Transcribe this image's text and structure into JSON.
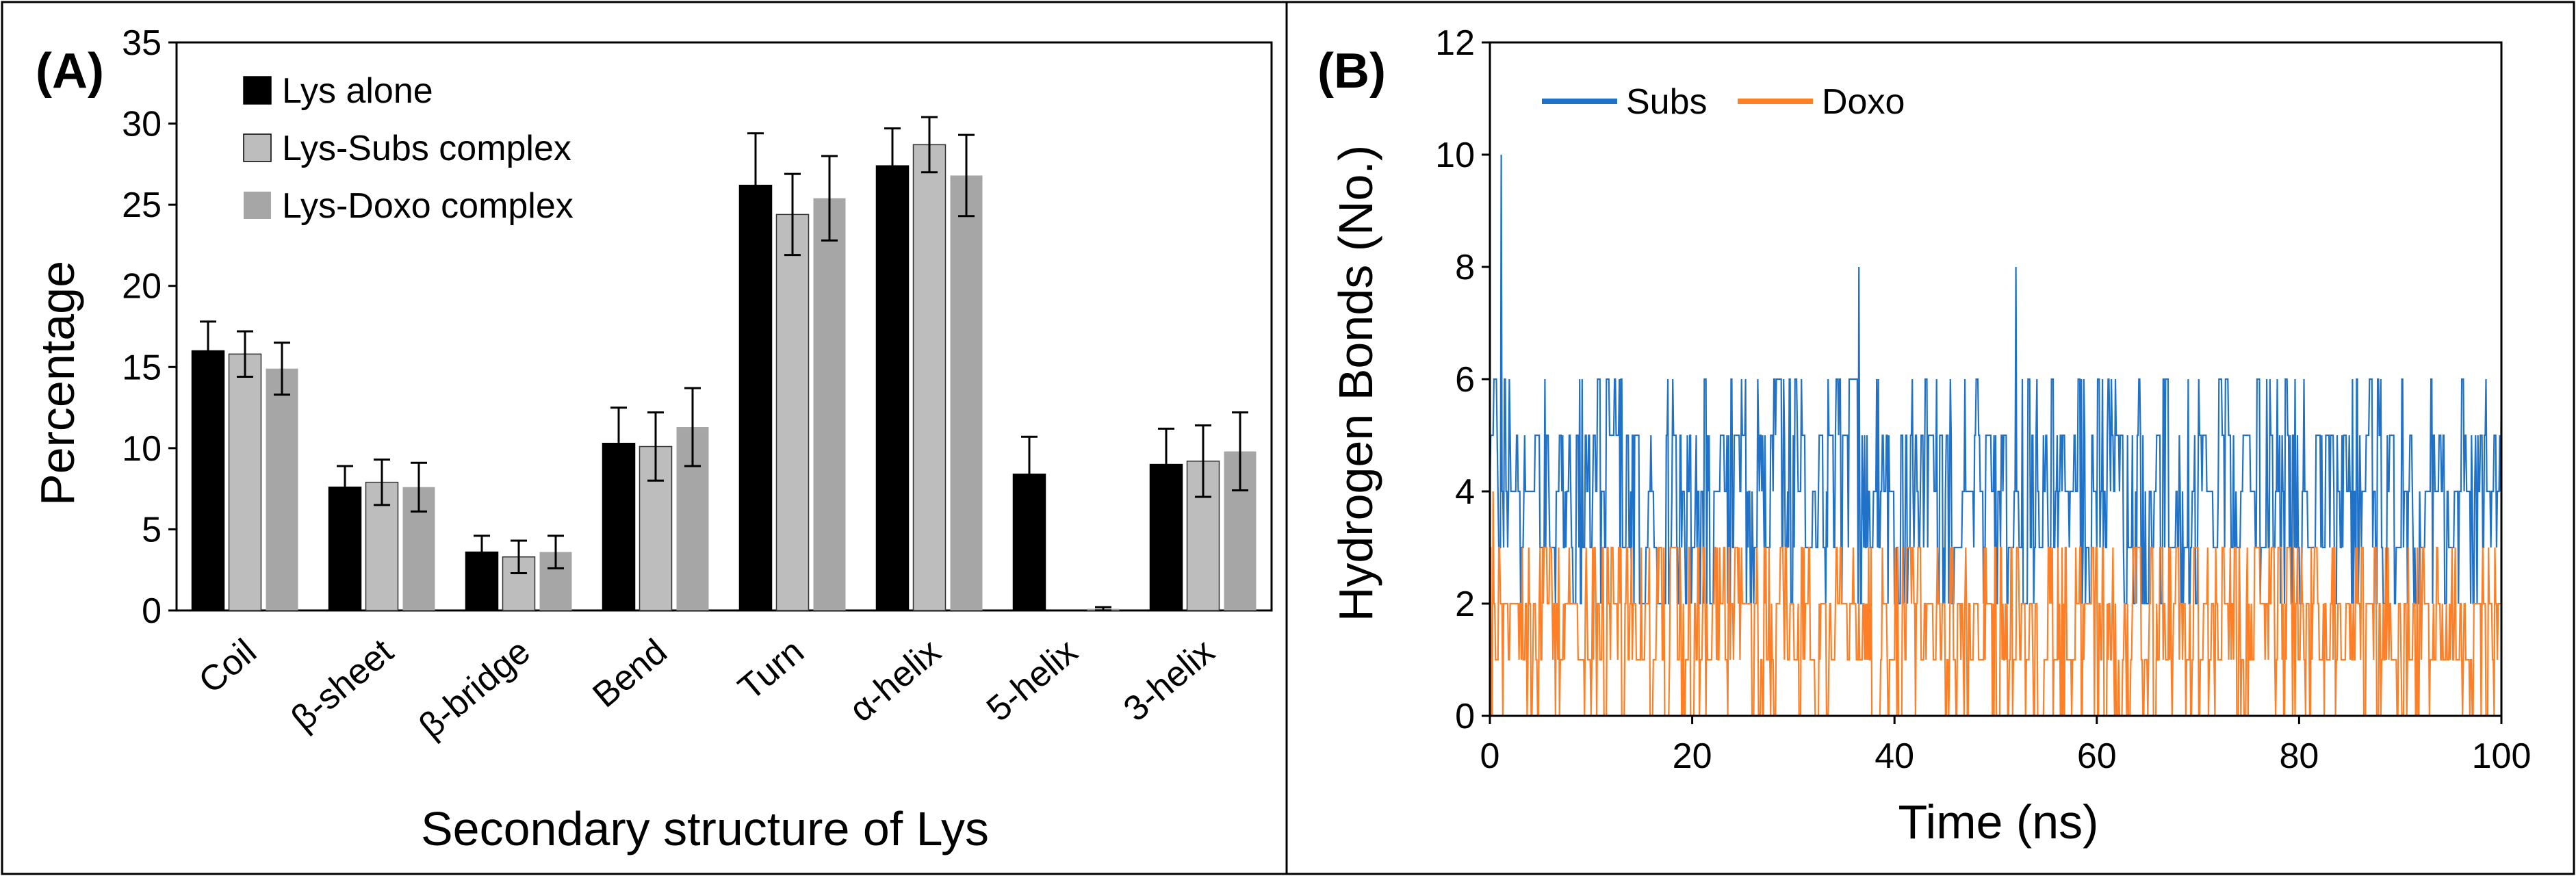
{
  "chart_data": [
    {
      "panel_label": "(A)",
      "type": "bar",
      "title": "",
      "xlabel": "Secondary structure of Lys",
      "ylabel": "Percentage",
      "ylim": [
        0,
        35
      ],
      "yticks": [
        0,
        5,
        10,
        15,
        20,
        25,
        30,
        35
      ],
      "categories": [
        "Coil",
        "β-sheet",
        "β-bridge",
        "Bend",
        "Turn",
        "α-helix",
        "5-helix",
        "3-helix"
      ],
      "series": [
        {
          "name": "Lys alone",
          "color": "#000000",
          "values": [
            16.0,
            7.6,
            3.6,
            10.3,
            26.2,
            27.4,
            8.4,
            9.0
          ],
          "errors": [
            1.8,
            1.3,
            1.0,
            2.2,
            3.2,
            2.3,
            2.3,
            2.2
          ]
        },
        {
          "name": "Lys-Subs complex",
          "color": "#bdbdbd",
          "values": [
            15.8,
            7.9,
            3.3,
            10.1,
            24.4,
            28.7,
            0.0,
            9.2
          ],
          "errors": [
            1.4,
            1.4,
            1.0,
            2.1,
            2.5,
            1.7,
            0.0,
            2.2
          ]
        },
        {
          "name": "Lys-Doxo complex",
          "color": "#a6a6a6",
          "values": [
            14.9,
            7.6,
            3.6,
            11.3,
            25.4,
            26.8,
            0.1,
            9.8
          ],
          "errors": [
            1.6,
            1.5,
            1.0,
            2.4,
            2.6,
            2.5,
            0.1,
            2.4
          ]
        }
      ],
      "legend": "top-left",
      "grid": false
    },
    {
      "panel_label": "(B)",
      "type": "line",
      "title": "",
      "xlabel": "Time (ns)",
      "ylabel": "Hydrogen Bonds (No.)",
      "xlim": [
        0,
        100
      ],
      "ylim": [
        0,
        12
      ],
      "xticks": [
        0,
        20,
        40,
        60,
        80,
        100
      ],
      "yticks": [
        0,
        2,
        4,
        6,
        8,
        10,
        12
      ],
      "series": [
        {
          "name": "Subs",
          "color": "#1f72c8",
          "typical_range": [
            2,
            6
          ],
          "peaks": [
            [
              1.1,
              10
            ],
            [
              36.5,
              8
            ],
            [
              52.0,
              8
            ]
          ]
        },
        {
          "name": "Doxo",
          "color": "#ff7f27",
          "typical_range": [
            0,
            3
          ],
          "peaks": [
            [
              0.3,
              4
            ]
          ]
        }
      ],
      "legend": "top-left",
      "grid": false
    }
  ]
}
